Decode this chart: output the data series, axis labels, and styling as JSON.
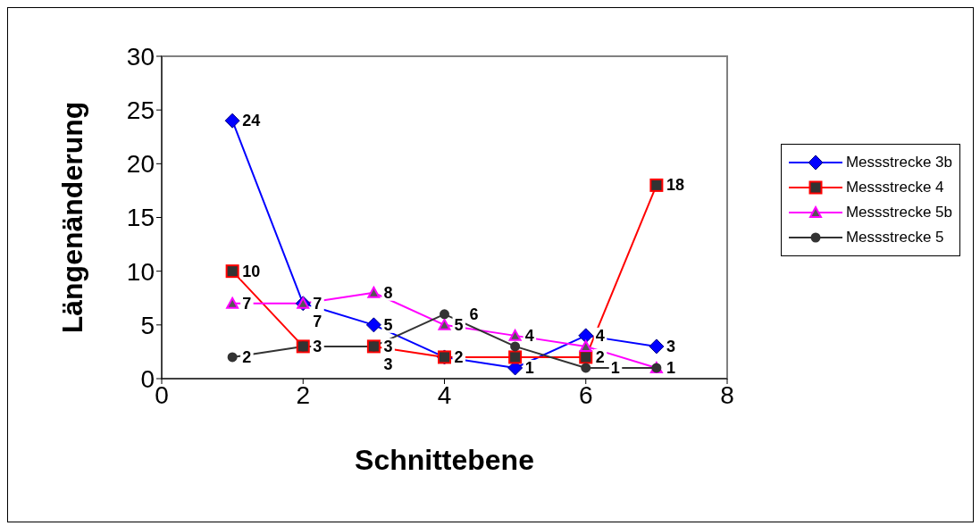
{
  "chart_data": {
    "type": "line",
    "xlabel": "Schnittebene",
    "ylabel": "Längenänderung",
    "x": [
      1,
      2,
      3,
      4,
      5,
      6,
      7
    ],
    "series": [
      {
        "name": "Messstrecke 3b",
        "color": "#0000ff",
        "marker": "diamond",
        "values": [
          24,
          7,
          5,
          2,
          1,
          4,
          3
        ],
        "value_labels": [
          "24",
          "7",
          "5",
          null,
          "1",
          "4",
          "3"
        ]
      },
      {
        "name": "Messstrecke 4",
        "color": "#ff0000",
        "marker": "square",
        "values": [
          10,
          3,
          3,
          2,
          2,
          2,
          18
        ],
        "value_labels": [
          "10",
          null,
          "3",
          "2",
          null,
          "2",
          "18"
        ]
      },
      {
        "name": "Messstrecke 5b",
        "color": "#ff00ff",
        "marker": "triangle",
        "values": [
          7,
          7,
          8,
          5,
          4,
          3,
          1
        ],
        "value_labels": [
          "7",
          "7",
          "8",
          "5",
          "4",
          null,
          "1"
        ]
      },
      {
        "name": "Messstrecke 5",
        "color": "#333333",
        "marker": "circle",
        "values": [
          2,
          3,
          3,
          6,
          3,
          1,
          1
        ],
        "value_labels": [
          "2",
          "3",
          "3",
          "6",
          null,
          "1",
          null
        ]
      }
    ],
    "xlim": [
      0,
      8
    ],
    "xticks": [
      0,
      2,
      4,
      6,
      8
    ],
    "ylim": [
      0,
      30
    ],
    "yticks": [
      0,
      5,
      10,
      15,
      20,
      25,
      30
    ],
    "legend": "right"
  }
}
